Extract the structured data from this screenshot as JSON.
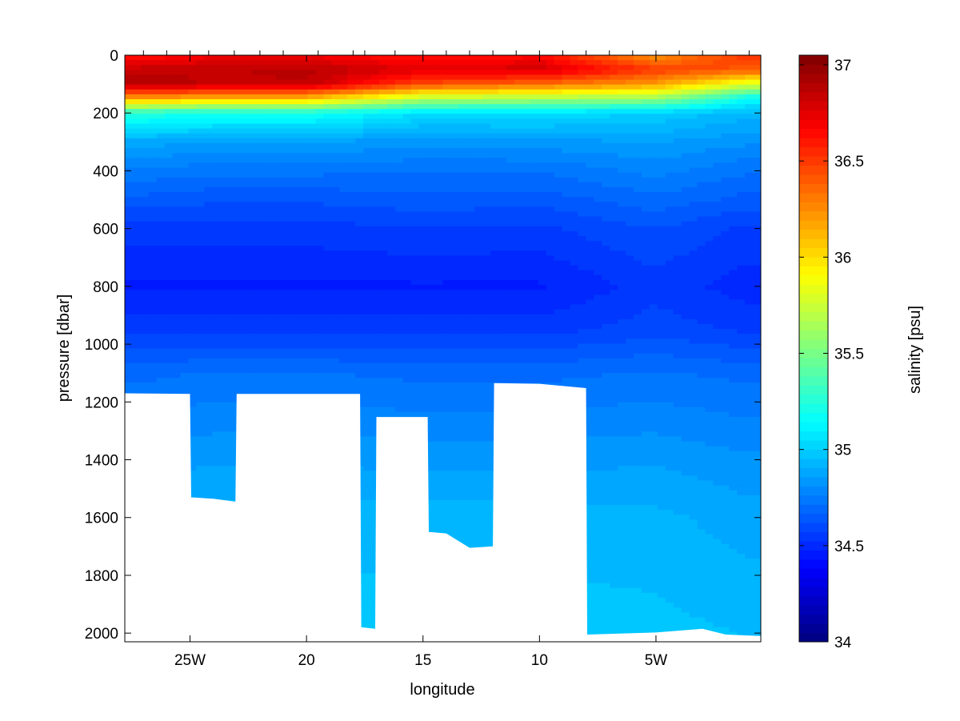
{
  "chart_data": {
    "type": "heatmap",
    "title": "",
    "xlabel": "longitude",
    "ylabel": "pressure [dbar]",
    "colorbar_label": "salinity [psu]",
    "x_unit": "degrees west",
    "xlim": [
      27.8,
      0.5
    ],
    "ylim": [
      0,
      2030
    ],
    "y_reversed": true,
    "x_ticks": [
      {
        "value": 25,
        "label": "25W"
      },
      {
        "value": 20,
        "label": "20"
      },
      {
        "value": 15,
        "label": "15"
      },
      {
        "value": 10,
        "label": "10"
      },
      {
        "value": 5,
        "label": "5W"
      }
    ],
    "y_ticks": [
      {
        "value": 0,
        "label": "0"
      },
      {
        "value": 200,
        "label": "200"
      },
      {
        "value": 400,
        "label": "400"
      },
      {
        "value": 600,
        "label": "600"
      },
      {
        "value": 800,
        "label": "800"
      },
      {
        "value": 1000,
        "label": "1000"
      },
      {
        "value": 1200,
        "label": "1200"
      },
      {
        "value": 1400,
        "label": "1400"
      },
      {
        "value": 1600,
        "label": "1600"
      },
      {
        "value": 1800,
        "label": "1800"
      },
      {
        "value": 2000,
        "label": "2000"
      }
    ],
    "colorbar": {
      "range": [
        34,
        37.05
      ],
      "colormap": "jet",
      "ticks": [
        {
          "value": 34,
          "label": "34"
        },
        {
          "value": 34.5,
          "label": "34.5"
        },
        {
          "value": 35,
          "label": "35"
        },
        {
          "value": 35.5,
          "label": "35.5"
        },
        {
          "value": 36,
          "label": "36"
        },
        {
          "value": 36.5,
          "label": "36.5"
        },
        {
          "value": 37,
          "label": "37"
        }
      ]
    },
    "station_longitudes": [
      27.0,
      26.0,
      25.0,
      24.2,
      23.1,
      22.0,
      21.0,
      19.5,
      18.0,
      17.5,
      16.2,
      15.0,
      14.0,
      13.0,
      12.0,
      11.0,
      10.0,
      9.0,
      8.0,
      7.0,
      6.0,
      5.0,
      4.0,
      3.0,
      2.0,
      1.0
    ],
    "bottom_depth_profile": [
      {
        "lon": 27.8,
        "depth": 1170
      },
      {
        "lon": 25.0,
        "depth": 1172
      },
      {
        "lon": 24.95,
        "depth": 1530
      },
      {
        "lon": 24.0,
        "depth": 1535
      },
      {
        "lon": 23.05,
        "depth": 1545
      },
      {
        "lon": 23.0,
        "depth": 1172
      },
      {
        "lon": 17.7,
        "depth": 1172
      },
      {
        "lon": 17.65,
        "depth": 1980
      },
      {
        "lon": 17.05,
        "depth": 1985
      },
      {
        "lon": 17.0,
        "depth": 1252
      },
      {
        "lon": 14.8,
        "depth": 1252
      },
      {
        "lon": 14.75,
        "depth": 1650
      },
      {
        "lon": 14.0,
        "depth": 1655
      },
      {
        "lon": 13.0,
        "depth": 1705
      },
      {
        "lon": 12.0,
        "depth": 1700
      },
      {
        "lon": 11.95,
        "depth": 1135
      },
      {
        "lon": 10.0,
        "depth": 1137
      },
      {
        "lon": 8.0,
        "depth": 1152
      },
      {
        "lon": 7.95,
        "depth": 2005
      },
      {
        "lon": 5.0,
        "depth": 1998
      },
      {
        "lon": 3.0,
        "depth": 1985
      },
      {
        "lon": 2.0,
        "depth": 2005
      },
      {
        "lon": 0.5,
        "depth": 2010
      }
    ],
    "salinity_section": [
      {
        "lon": 27.0,
        "depth_m": [
          0,
          50,
          100,
          150,
          200,
          300,
          400,
          500,
          600,
          800,
          950,
          1100,
          1400,
          1600,
          2000
        ],
        "salinity": [
          36.6,
          36.85,
          36.9,
          36.2,
          35.25,
          34.88,
          34.75,
          34.65,
          34.55,
          34.47,
          34.55,
          34.7,
          34.83,
          34.93,
          34.98
        ]
      },
      {
        "lon": 24.0,
        "depth_m": [
          0,
          50,
          100,
          150,
          200,
          300,
          400,
          500,
          600,
          800,
          950,
          1100,
          1400,
          1600,
          2000
        ],
        "salinity": [
          36.7,
          36.85,
          36.85,
          36.1,
          35.2,
          34.86,
          34.73,
          34.63,
          34.55,
          34.47,
          34.55,
          34.72,
          34.85,
          34.93,
          34.98
        ]
      },
      {
        "lon": 20.0,
        "depth_m": [
          0,
          50,
          100,
          150,
          200,
          300,
          400,
          500,
          600,
          800,
          950,
          1100,
          1400,
          1600,
          2000
        ],
        "salinity": [
          36.7,
          36.88,
          36.85,
          36.1,
          35.2,
          34.86,
          34.73,
          34.63,
          34.55,
          34.47,
          34.55,
          34.72,
          34.85,
          34.93,
          34.98
        ]
      },
      {
        "lon": 15.0,
        "depth_m": [
          0,
          50,
          100,
          150,
          200,
          300,
          400,
          500,
          600,
          800,
          950,
          1100,
          1400,
          1600,
          2000
        ],
        "salinity": [
          36.6,
          36.75,
          36.45,
          35.7,
          35.05,
          34.83,
          34.72,
          34.65,
          34.57,
          34.47,
          34.55,
          34.7,
          34.84,
          34.93,
          34.98
        ]
      },
      {
        "lon": 10.0,
        "depth_m": [
          0,
          50,
          100,
          150,
          200,
          300,
          400,
          500,
          600,
          800,
          950,
          1100,
          1400,
          1600,
          2000
        ],
        "salinity": [
          36.65,
          36.8,
          36.35,
          35.65,
          35.05,
          34.84,
          34.72,
          34.64,
          34.56,
          34.47,
          34.55,
          34.7,
          34.84,
          34.93,
          34.98
        ]
      },
      {
        "lon": 5.0,
        "depth_m": [
          0,
          50,
          100,
          150,
          200,
          300,
          400,
          500,
          600,
          800,
          950,
          1100,
          1400,
          1600,
          2000
        ],
        "salinity": [
          36.2,
          36.5,
          36.2,
          35.6,
          35.0,
          34.86,
          34.78,
          34.7,
          34.62,
          34.55,
          34.6,
          34.72,
          34.85,
          34.92,
          34.97
        ]
      },
      {
        "lon": 1.0,
        "depth_m": [
          0,
          50,
          100,
          150,
          200,
          300,
          400,
          500,
          600,
          800,
          950,
          1100,
          1400,
          1600,
          2000
        ],
        "salinity": [
          36.55,
          36.4,
          35.8,
          35.15,
          34.93,
          34.82,
          34.72,
          34.65,
          34.56,
          34.5,
          34.56,
          34.7,
          34.82,
          34.88,
          34.95
        ]
      }
    ]
  }
}
